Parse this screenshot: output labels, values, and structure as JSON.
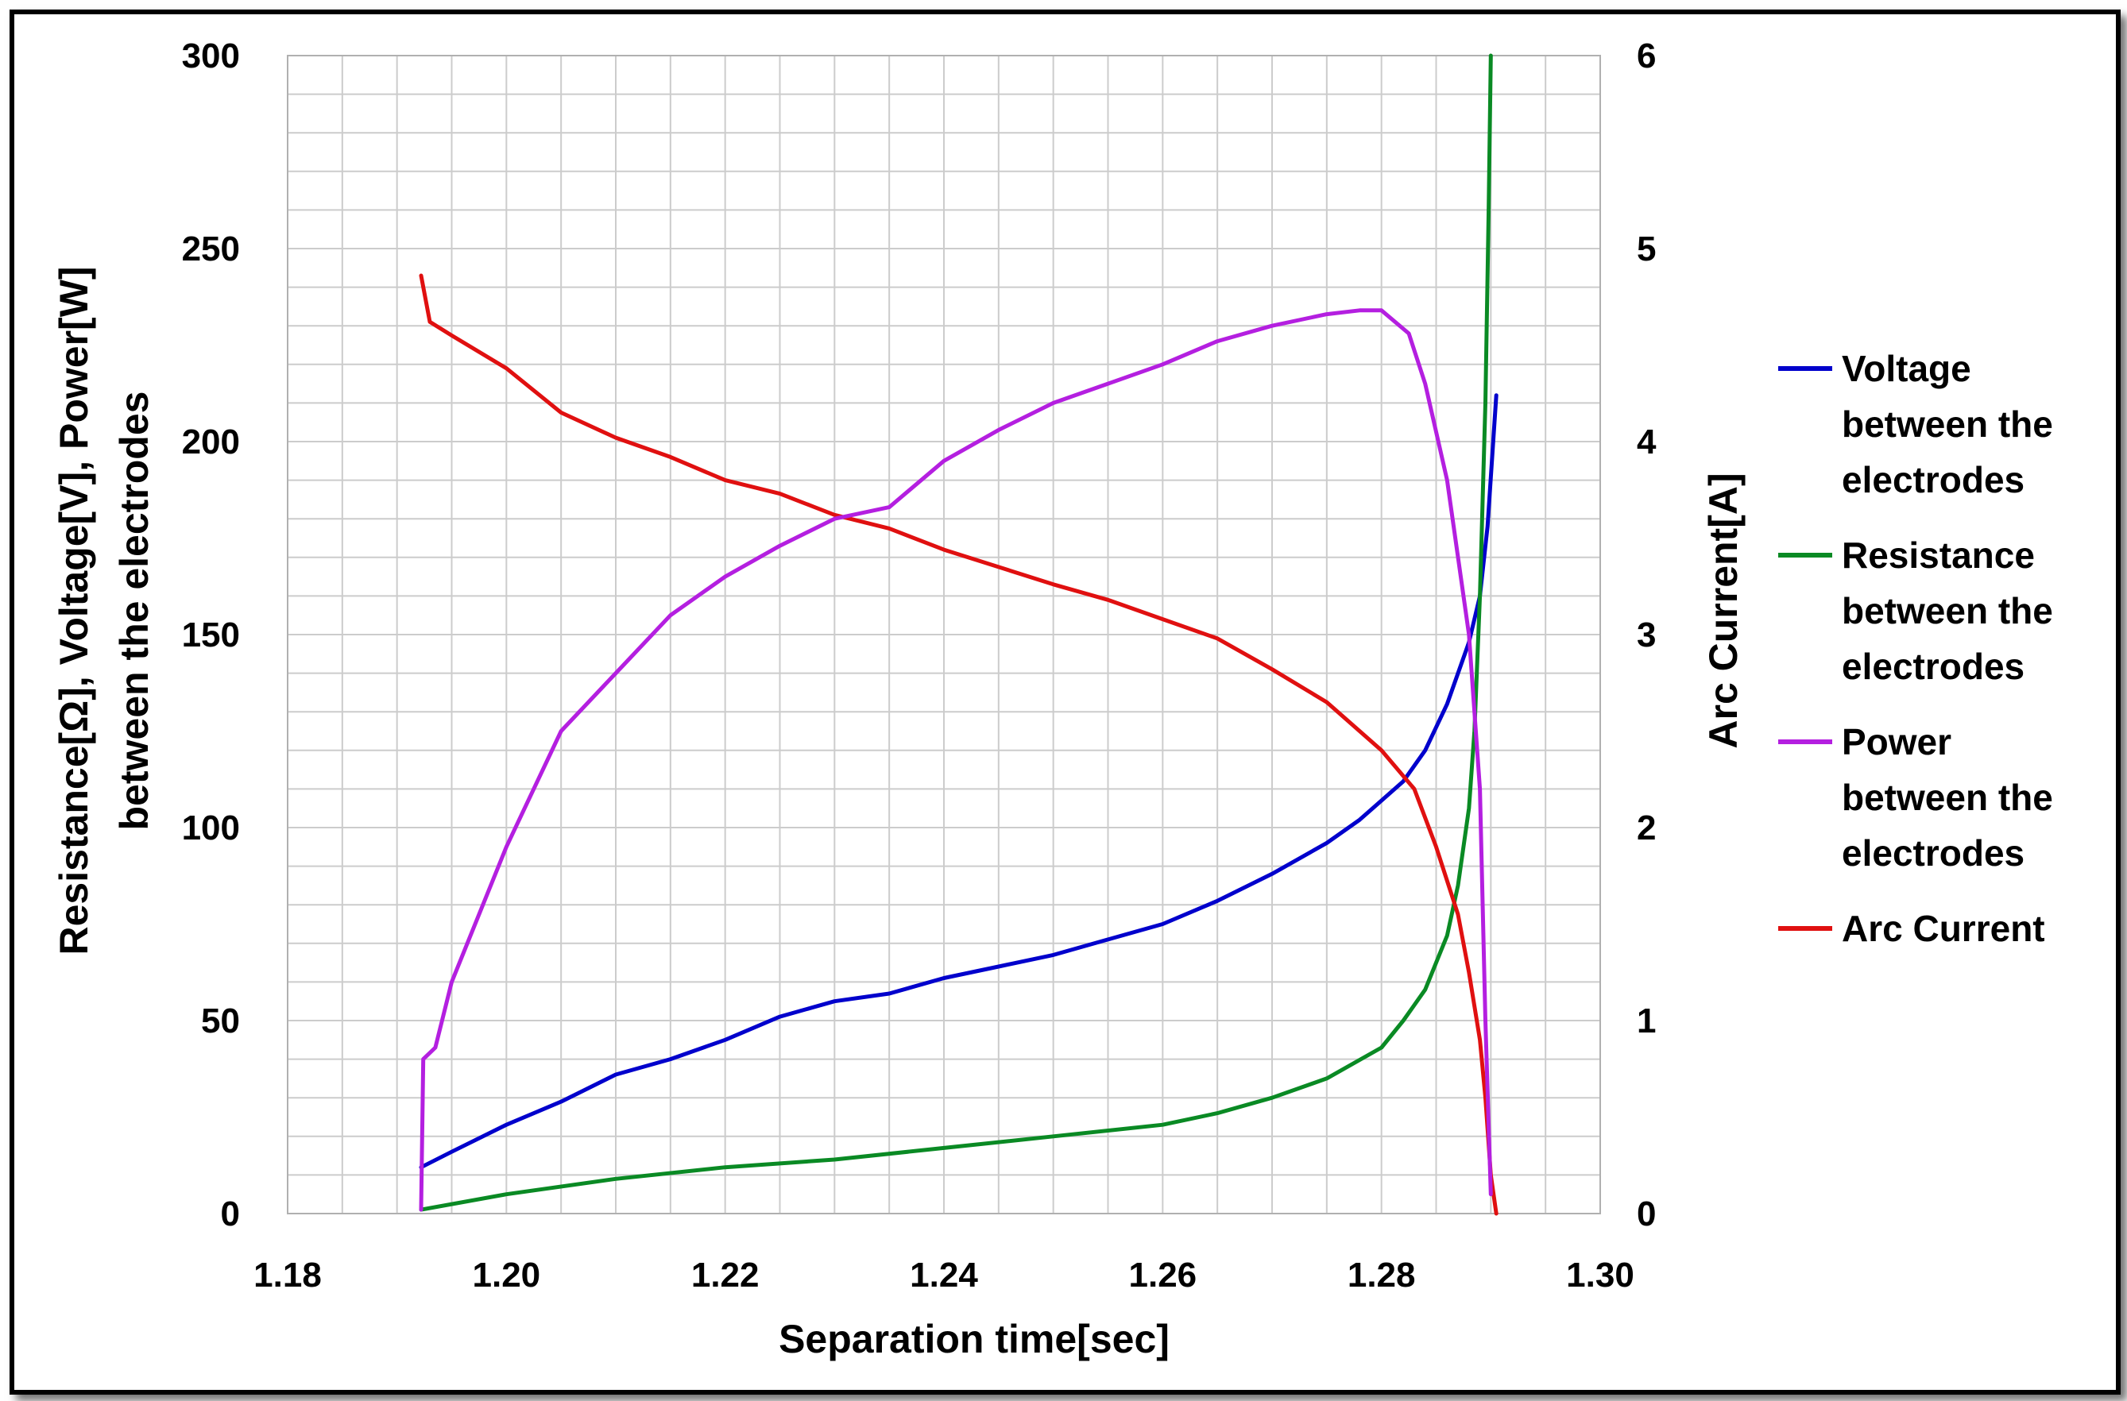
{
  "chart_data": {
    "type": "line",
    "title": "",
    "xlabel": "Separation time[sec]",
    "ylabel_line1": "Resistance[Ω], Voltage[V], Power[W]",
    "ylabel_line2": "between the electrodes",
    "y2label": "Arc Current[A]",
    "xlim": [
      1.18,
      1.3
    ],
    "ylim": [
      0,
      300
    ],
    "y2lim": [
      0,
      6
    ],
    "x_ticks": [
      "1.18",
      "1.20",
      "1.22",
      "1.24",
      "1.26",
      "1.28",
      "1.30"
    ],
    "y_ticks": [
      "0",
      "50",
      "100",
      "150",
      "200",
      "250",
      "300"
    ],
    "y2_ticks": [
      "0",
      "1",
      "2",
      "3",
      "4",
      "5",
      "6"
    ],
    "grid": true,
    "legend_position": "right",
    "series": [
      {
        "name_lines": [
          "Voltage",
          "between the",
          "electrodes"
        ],
        "color": "#0000cc",
        "axis": "left",
        "x": [
          1.1922,
          1.195,
          1.2,
          1.205,
          1.21,
          1.215,
          1.22,
          1.225,
          1.23,
          1.235,
          1.24,
          1.245,
          1.25,
          1.255,
          1.26,
          1.265,
          1.27,
          1.275,
          1.278,
          1.28,
          1.282,
          1.284,
          1.286,
          1.288,
          1.289,
          1.2897,
          1.2905
        ],
        "y": [
          12,
          16,
          23,
          29,
          36,
          40,
          45,
          51,
          55,
          57,
          61,
          64,
          67,
          71,
          75,
          81,
          88,
          96,
          102,
          107,
          112,
          120,
          132,
          148,
          160,
          178,
          212
        ]
      },
      {
        "name_lines": [
          "Resistance",
          "between the",
          "electrodes"
        ],
        "color": "#0a8a24",
        "axis": "left",
        "x": [
          1.1922,
          1.2,
          1.21,
          1.22,
          1.23,
          1.24,
          1.25,
          1.26,
          1.265,
          1.27,
          1.275,
          1.28,
          1.282,
          1.284,
          1.286,
          1.287,
          1.288,
          1.2885,
          1.289,
          1.2895,
          1.2898,
          1.29
        ],
        "y": [
          1,
          5,
          9,
          12,
          14,
          17,
          20,
          23,
          26,
          30,
          35,
          43,
          50,
          58,
          72,
          85,
          105,
          125,
          160,
          210,
          260,
          300
        ]
      },
      {
        "name_lines": [
          "Power",
          "between the",
          "electrodes"
        ],
        "color": "#b41fe0",
        "axis": "left",
        "x": [
          1.1922,
          1.1924,
          1.1935,
          1.195,
          1.2,
          1.205,
          1.21,
          1.215,
          1.22,
          1.225,
          1.23,
          1.235,
          1.24,
          1.245,
          1.25,
          1.255,
          1.26,
          1.265,
          1.27,
          1.275,
          1.278,
          1.28,
          1.2825,
          1.284,
          1.286,
          1.288,
          1.289,
          1.2895,
          1.29
        ],
        "y": [
          1,
          40,
          43,
          60,
          95,
          125,
          140,
          155,
          165,
          173,
          180,
          183,
          195,
          203,
          210,
          215,
          220,
          226,
          230,
          233,
          234,
          234,
          228,
          215,
          190,
          150,
          110,
          50,
          5
        ]
      },
      {
        "name_lines": [
          "Arc Current"
        ],
        "color": "#e01010",
        "axis": "right",
        "x": [
          1.1922,
          1.193,
          1.195,
          1.2,
          1.205,
          1.21,
          1.215,
          1.22,
          1.225,
          1.23,
          1.235,
          1.24,
          1.245,
          1.25,
          1.255,
          1.26,
          1.265,
          1.27,
          1.275,
          1.28,
          1.283,
          1.285,
          1.287,
          1.288,
          1.289,
          1.2895,
          1.29,
          1.2905
        ],
        "y": [
          4.86,
          4.62,
          4.55,
          4.38,
          4.15,
          4.02,
          3.92,
          3.8,
          3.73,
          3.62,
          3.55,
          3.44,
          3.35,
          3.26,
          3.18,
          3.08,
          2.98,
          2.82,
          2.65,
          2.4,
          2.2,
          1.9,
          1.55,
          1.25,
          0.9,
          0.6,
          0.2,
          0
        ]
      }
    ]
  }
}
